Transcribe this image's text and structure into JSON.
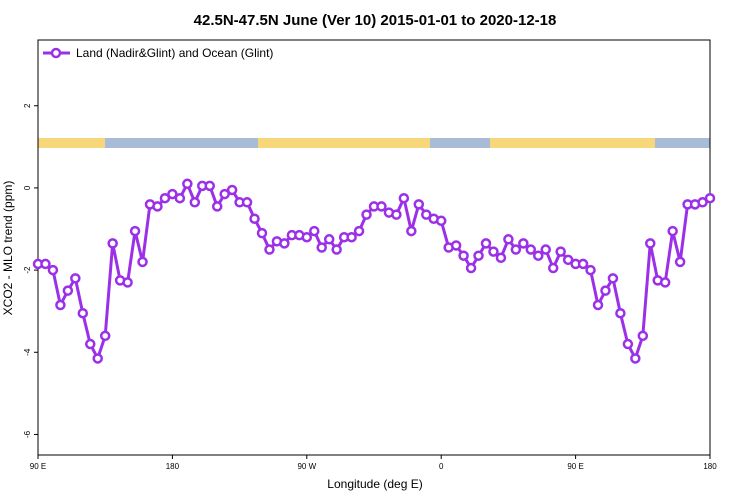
{
  "chart_data": {
    "type": "line",
    "title": "42.5N-47.5N June (Ver 10)   2015-01-01 to 2020-12-18",
    "x_label": "Longitude (deg E)",
    "y_label": "XCO2 - MLO trend (ppm)",
    "x": [
      90,
      95,
      100,
      105,
      110,
      115,
      120,
      125,
      130,
      135,
      140,
      145,
      150,
      155,
      160,
      165,
      170,
      175,
      180,
      185,
      190,
      195,
      200,
      205,
      210,
      215,
      220,
      225,
      230,
      235,
      240,
      245,
      250,
      255,
      260,
      265,
      270,
      275,
      280,
      285,
      290,
      295,
      300,
      305,
      310,
      315,
      320,
      325,
      330,
      335,
      340,
      345,
      350,
      355,
      360,
      365,
      370,
      375,
      380,
      385,
      390,
      395,
      400,
      405,
      410,
      415,
      420,
      425,
      430,
      435,
      440,
      445,
      450,
      455,
      460,
      465,
      470,
      475,
      480,
      485,
      490,
      495,
      500,
      505,
      510,
      515,
      520,
      525,
      530,
      535,
      540
    ],
    "series": [
      {
        "name": "Land (Nadir&Glint) and Ocean (Glint)",
        "color": "#9b30e8",
        "values": [
          -1.85,
          -1.85,
          -2.0,
          -2.85,
          -2.5,
          -2.2,
          -3.05,
          -3.8,
          -4.15,
          -3.6,
          -1.35,
          -2.25,
          -2.3,
          -1.05,
          -1.8,
          -0.4,
          -0.45,
          -0.25,
          -0.15,
          -0.25,
          0.1,
          -0.35,
          0.05,
          0.05,
          -0.45,
          -0.15,
          -0.05,
          -0.35,
          -0.35,
          -0.75,
          -1.1,
          -1.5,
          -1.3,
          -1.35,
          -1.15,
          -1.15,
          -1.2,
          -1.05,
          -1.45,
          -1.25,
          -1.5,
          -1.2,
          -1.2,
          -1.05,
          -0.65,
          -0.45,
          -0.45,
          -0.6,
          -0.65,
          -0.25,
          -1.05,
          -0.4,
          -0.65,
          -0.75,
          -0.8,
          -1.45,
          -1.4,
          -1.65,
          -1.95,
          -1.65,
          -1.35,
          -1.55,
          -1.7,
          -1.25,
          -1.5,
          -1.35,
          -1.5,
          -1.65,
          -1.5,
          -1.95,
          -1.55,
          -1.75,
          -1.85,
          -1.85,
          -2.0,
          -2.85,
          -2.5,
          -2.2,
          -3.05,
          -3.8,
          -4.15,
          -3.6,
          -1.35,
          -2.25,
          -2.3,
          -1.05,
          -1.8,
          -0.4,
          -0.4,
          -0.35,
          -0.25
        ]
      }
    ],
    "xlim": [
      90,
      540
    ],
    "xticks": [
      {
        "value": 90,
        "label": "90 E"
      },
      180,
      {
        "value": 270,
        "label": "90 W"
      },
      {
        "value": 360,
        "label": "0"
      },
      {
        "value": 450,
        "label": "90 E"
      },
      {
        "value": 540,
        "label": "180"
      }
    ],
    "ylim": [
      -6.5,
      3.6
    ],
    "yticks": [
      -6,
      -4,
      -2,
      0,
      2
    ],
    "legend": "top-left"
  }
}
